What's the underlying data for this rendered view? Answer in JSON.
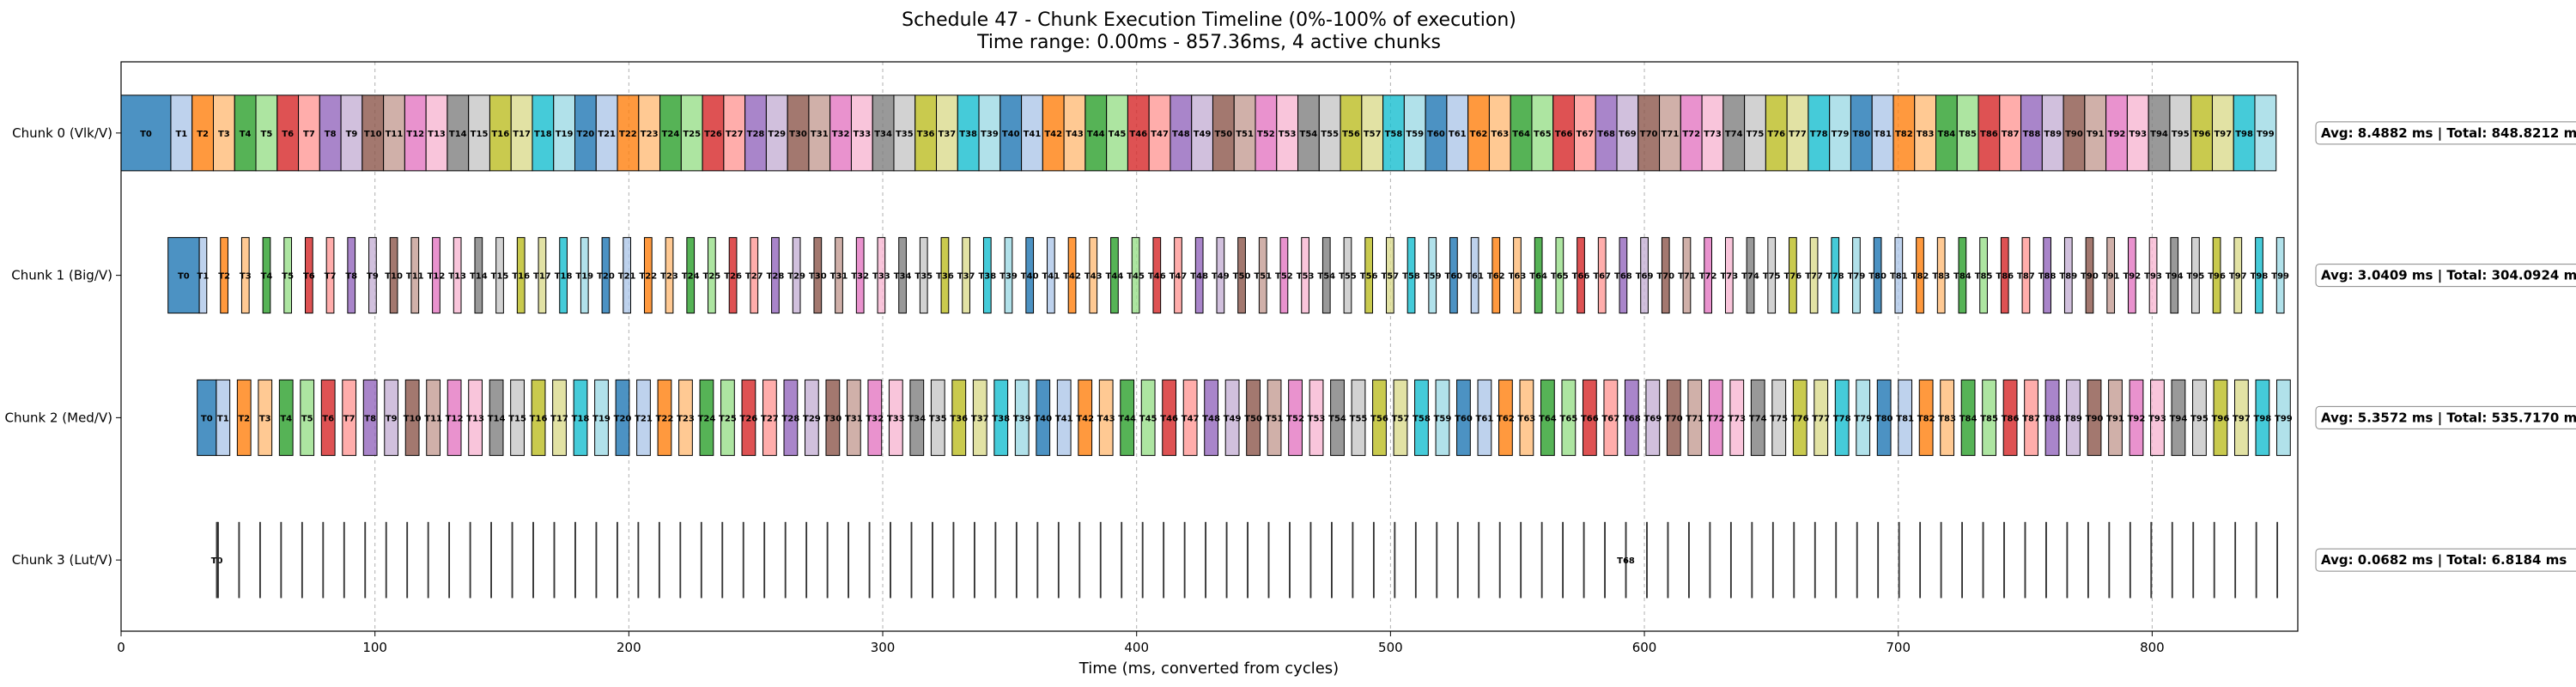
{
  "chart_data": {
    "type": "bar",
    "subtype": "gantt",
    "title": "Schedule 47 - Chunk Execution Timeline (0%-100% of execution)",
    "subtitle": "Time range: 0.00ms - 857.36ms, 4 active chunks",
    "xlabel": "Time (ms, converted from cycles)",
    "xlim": [
      0,
      857.36
    ],
    "xticks": [
      0,
      100,
      200,
      300,
      400,
      500,
      600,
      700,
      800
    ],
    "grid": "vertical-dashed",
    "palette": [
      "#1f77b4",
      "#aec7e8",
      "#ff7f0e",
      "#ffbb78",
      "#2ca02c",
      "#98df8a",
      "#d62728",
      "#ff9896",
      "#9467bd",
      "#c5b0d5",
      "#8c564b",
      "#c49c94",
      "#e377c2",
      "#f7b6d2",
      "#7f7f7f",
      "#c7c7c7",
      "#bcbd22",
      "#dbdb8d",
      "#17becf",
      "#9edae5"
    ],
    "chunks": [
      {
        "label": "Chunk 0 (Vlk/V)",
        "task_count": 100,
        "first_start_ms": 0.0,
        "first_duration_ms": 19.6,
        "avg_ms": 8.4882,
        "end_ms": 848.82,
        "shown_task_labels": "all",
        "stats_label": "Avg: 8.4882 ms | Total: 848.8212 ms"
      },
      {
        "label": "Chunk 1 (Big/V)",
        "task_count": 100,
        "first_start_ms": 18.5,
        "first_duration_ms": 12.3,
        "avg_ms": 3.0409,
        "end_ms": 857.36,
        "shown_task_labels": "all",
        "stats_label": "Avg: 3.0409 ms | Total: 304.0924 ms"
      },
      {
        "label": "Chunk 2 (Med/V)",
        "task_count": 100,
        "first_start_ms": 30.0,
        "first_duration_ms": 7.5,
        "avg_ms": 5.3572,
        "end_ms": 857.36,
        "shown_task_labels": "all",
        "stats_label": "Avg: 5.3572 ms | Total: 535.7170 ms"
      },
      {
        "label": "Chunk 3 (Lut/V)",
        "task_count": 100,
        "first_start_ms": 37.5,
        "first_duration_ms": 0.5,
        "avg_ms": 0.0682,
        "end_ms": 857.36,
        "shown_task_labels": [
          "T0",
          "T68"
        ],
        "stats_label": "Avg: 0.0682 ms | Total: 6.8184 ms"
      }
    ]
  }
}
